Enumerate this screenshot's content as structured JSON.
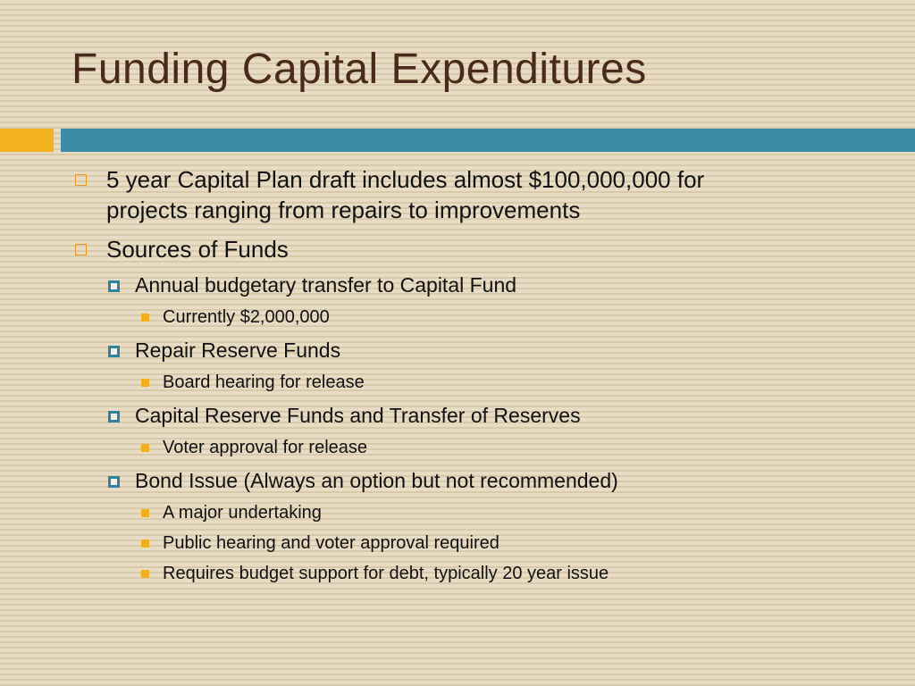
{
  "slide": {
    "title": "Funding Capital Expenditures",
    "colors": {
      "title": "#4a2a1c",
      "accent_orange": "#f2b11f",
      "accent_teal": "#3b8aa6",
      "background": "#e7d9c0"
    },
    "bullets": [
      {
        "level": 1,
        "marker": "hollow-square-icon",
        "lines": [
          "5 year Capital Plan draft includes almost $100,000,000 for",
          "projects ranging from repairs to improvements"
        ]
      },
      {
        "level": 1,
        "marker": "hollow-square-icon",
        "lines": [
          "Sources of Funds"
        ]
      },
      {
        "level": 2,
        "marker": "framed-square-icon",
        "lines": [
          "Annual budgetary transfer to Capital Fund"
        ]
      },
      {
        "level": 3,
        "marker": "filled-square-icon",
        "lines": [
          "Currently $2,000,000"
        ]
      },
      {
        "level": 2,
        "marker": "framed-square-icon",
        "lines": [
          "Repair Reserve Funds"
        ]
      },
      {
        "level": 3,
        "marker": "filled-square-icon",
        "lines": [
          "Board hearing for release"
        ]
      },
      {
        "level": 2,
        "marker": "framed-square-icon",
        "lines": [
          "Capital Reserve Funds and Transfer of Reserves"
        ]
      },
      {
        "level": 3,
        "marker": "filled-square-icon",
        "lines": [
          "Voter approval for release"
        ]
      },
      {
        "level": 2,
        "marker": "framed-square-icon",
        "lines": [
          "Bond Issue (Always an option but not recommended)"
        ]
      },
      {
        "level": 3,
        "marker": "filled-square-icon",
        "lines": [
          "A major undertaking"
        ]
      },
      {
        "level": 3,
        "marker": "filled-square-icon",
        "lines": [
          "Public hearing and voter approval required"
        ]
      },
      {
        "level": 3,
        "marker": "filled-square-icon",
        "lines": [
          "Requires budget support for debt, typically 20 year issue"
        ]
      }
    ]
  }
}
